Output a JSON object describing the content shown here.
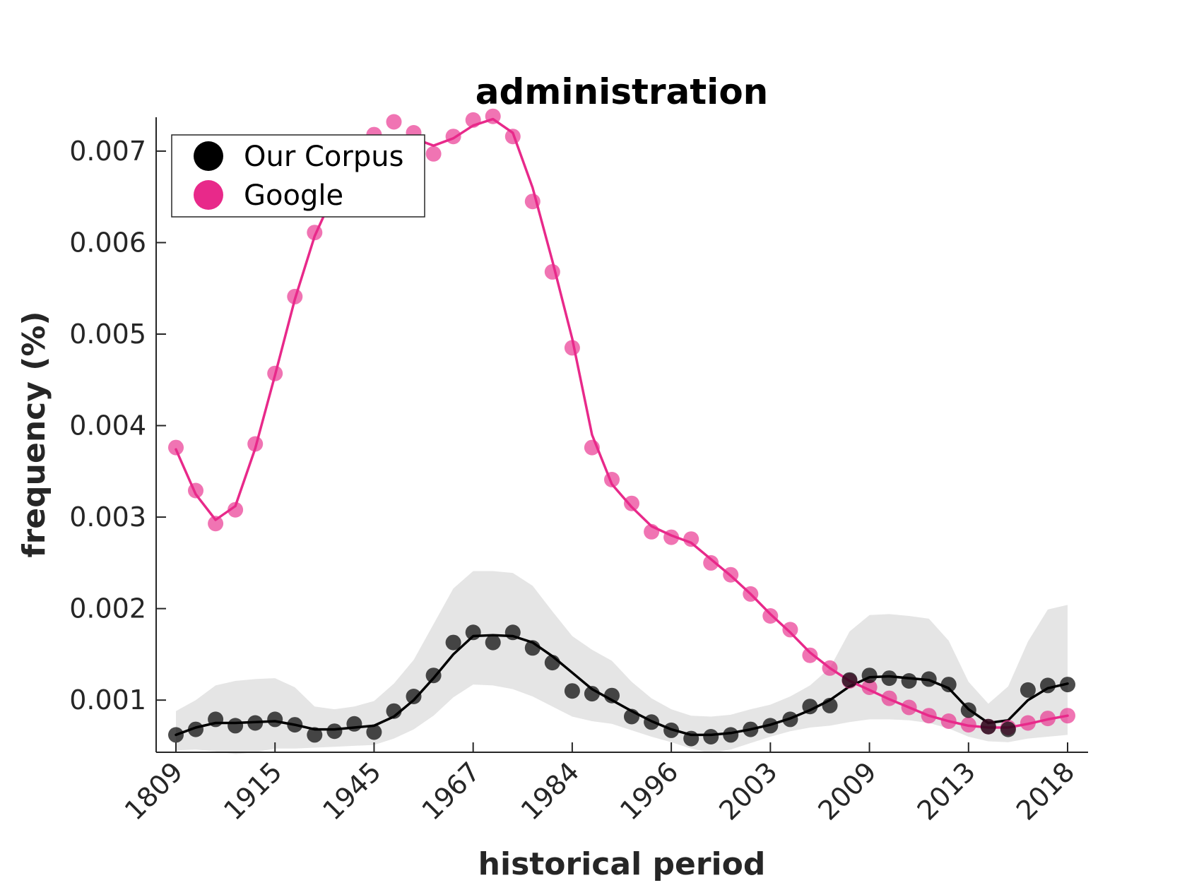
{
  "colors": {
    "corpus": "#000000",
    "google": "#e8298a",
    "band": "#e5e5e5",
    "axis": "#262626"
  },
  "chart_data": {
    "type": "line",
    "title": "administration",
    "xlabel": "historical period",
    "ylabel": "frequency (%)",
    "x_tick_labels": [
      "1809",
      "1915",
      "1945",
      "1967",
      "1984",
      "1996",
      "2003",
      "2009",
      "2013",
      "2018"
    ],
    "y_ticks": [
      0.001,
      0.002,
      0.003,
      0.004,
      0.005,
      0.006,
      0.007
    ],
    "y_tick_labels": [
      "0.001",
      "0.002",
      "0.003",
      "0.004",
      "0.005",
      "0.006",
      "0.007"
    ],
    "ylim": [
      0.00043,
      0.00737
    ],
    "n_points": 46,
    "legend_position": "top-left",
    "grid": false,
    "series": [
      {
        "name": "Our Corpus",
        "color": "#000000",
        "values": [
          0.00062,
          0.00068,
          0.00079,
          0.00072,
          0.00075,
          0.00079,
          0.00073,
          0.00062,
          0.00066,
          0.00074,
          0.00065,
          0.00088,
          0.00104,
          0.00127,
          0.00163,
          0.00174,
          0.00163,
          0.00174,
          0.00157,
          0.00141,
          0.0011,
          0.00107,
          0.00105,
          0.00082,
          0.00076,
          0.00067,
          0.00058,
          0.0006,
          0.00062,
          0.00068,
          0.00072,
          0.00079,
          0.00093,
          0.00094,
          0.00122,
          0.00127,
          0.00124,
          0.00121,
          0.00123,
          0.00117,
          0.00089,
          0.00071,
          0.00068,
          0.00111,
          0.00116,
          0.00117
        ],
        "smoothed": [
          0.00062,
          0.0007,
          0.00075,
          0.00075,
          0.00076,
          0.00077,
          0.00073,
          0.00068,
          0.00068,
          0.0007,
          0.00072,
          0.00082,
          0.001,
          0.00124,
          0.0015,
          0.0017,
          0.00171,
          0.0017,
          0.00163,
          0.00148,
          0.0013,
          0.00112,
          0.001,
          0.00088,
          0.00077,
          0.00068,
          0.00062,
          0.00062,
          0.00064,
          0.00068,
          0.00073,
          0.0008,
          0.00089,
          0.001,
          0.00115,
          0.00125,
          0.00126,
          0.00124,
          0.00122,
          0.00113,
          0.0009,
          0.00075,
          0.00078,
          0.001,
          0.00113,
          0.00118
        ],
        "band_upper": [
          0.00088,
          0.001,
          0.00116,
          0.00121,
          0.00123,
          0.00124,
          0.00114,
          0.00093,
          0.0009,
          0.00093,
          0.00099,
          0.00118,
          0.00144,
          0.00183,
          0.00222,
          0.00241,
          0.00241,
          0.00239,
          0.00225,
          0.00197,
          0.0017,
          0.00155,
          0.00143,
          0.0012,
          0.00102,
          0.0009,
          0.00083,
          0.00082,
          0.00084,
          0.0009,
          0.00095,
          0.00104,
          0.00116,
          0.00135,
          0.00175,
          0.00193,
          0.00194,
          0.00192,
          0.00189,
          0.00165,
          0.0012,
          0.00096,
          0.00115,
          0.00164,
          0.00199,
          0.00204
        ],
        "band_lower": [
          0.00045,
          0.00046,
          0.00044,
          0.00041,
          0.00043,
          0.00047,
          0.00047,
          0.00048,
          0.00049,
          0.0005,
          0.00051,
          0.00058,
          0.00068,
          0.00083,
          0.00103,
          0.00117,
          0.00116,
          0.00112,
          0.00104,
          0.00093,
          0.00082,
          0.00077,
          0.00074,
          0.00067,
          0.0006,
          0.00054,
          0.00047,
          0.00042,
          0.00046,
          0.00053,
          0.0006,
          0.00066,
          0.0007,
          0.00072,
          0.00076,
          0.00079,
          0.00079,
          0.00078,
          0.00075,
          0.00069,
          0.0006,
          0.00055,
          0.00054,
          0.00058,
          0.0006,
          0.00062
        ]
      },
      {
        "name": "Google",
        "color": "#e8298a",
        "values": [
          0.00376,
          0.00329,
          0.00293,
          0.00308,
          0.0038,
          0.00457,
          0.00541,
          0.00611,
          0.00658,
          0.007,
          0.00718,
          0.00732,
          0.0072,
          0.00697,
          0.00716,
          0.00734,
          0.00738,
          0.00716,
          0.00645,
          0.00568,
          0.00485,
          0.00376,
          0.00341,
          0.00315,
          0.00284,
          0.00278,
          0.00276,
          0.0025,
          0.00237,
          0.00216,
          0.00192,
          0.00177,
          0.00149,
          0.00135,
          0.00121,
          0.00114,
          0.00102,
          0.00092,
          0.00083,
          0.00077,
          0.00073,
          0.00071,
          0.0007,
          0.00075,
          0.0008,
          0.00083
        ],
        "smoothed": [
          0.00374,
          0.00325,
          0.00297,
          0.00312,
          0.00375,
          0.00455,
          0.00538,
          0.00607,
          0.00655,
          0.00695,
          0.0071,
          0.00716,
          0.00714,
          0.00706,
          0.00714,
          0.00728,
          0.00735,
          0.0072,
          0.0066,
          0.0058,
          0.00495,
          0.0039,
          0.00336,
          0.00311,
          0.0029,
          0.0028,
          0.00272,
          0.00254,
          0.00236,
          0.00216,
          0.00194,
          0.00174,
          0.00152,
          0.00135,
          0.00121,
          0.00111,
          0.00101,
          0.00092,
          0.00083,
          0.00077,
          0.00072,
          0.0007,
          0.0007,
          0.00074,
          0.00079,
          0.00083
        ]
      }
    ]
  }
}
